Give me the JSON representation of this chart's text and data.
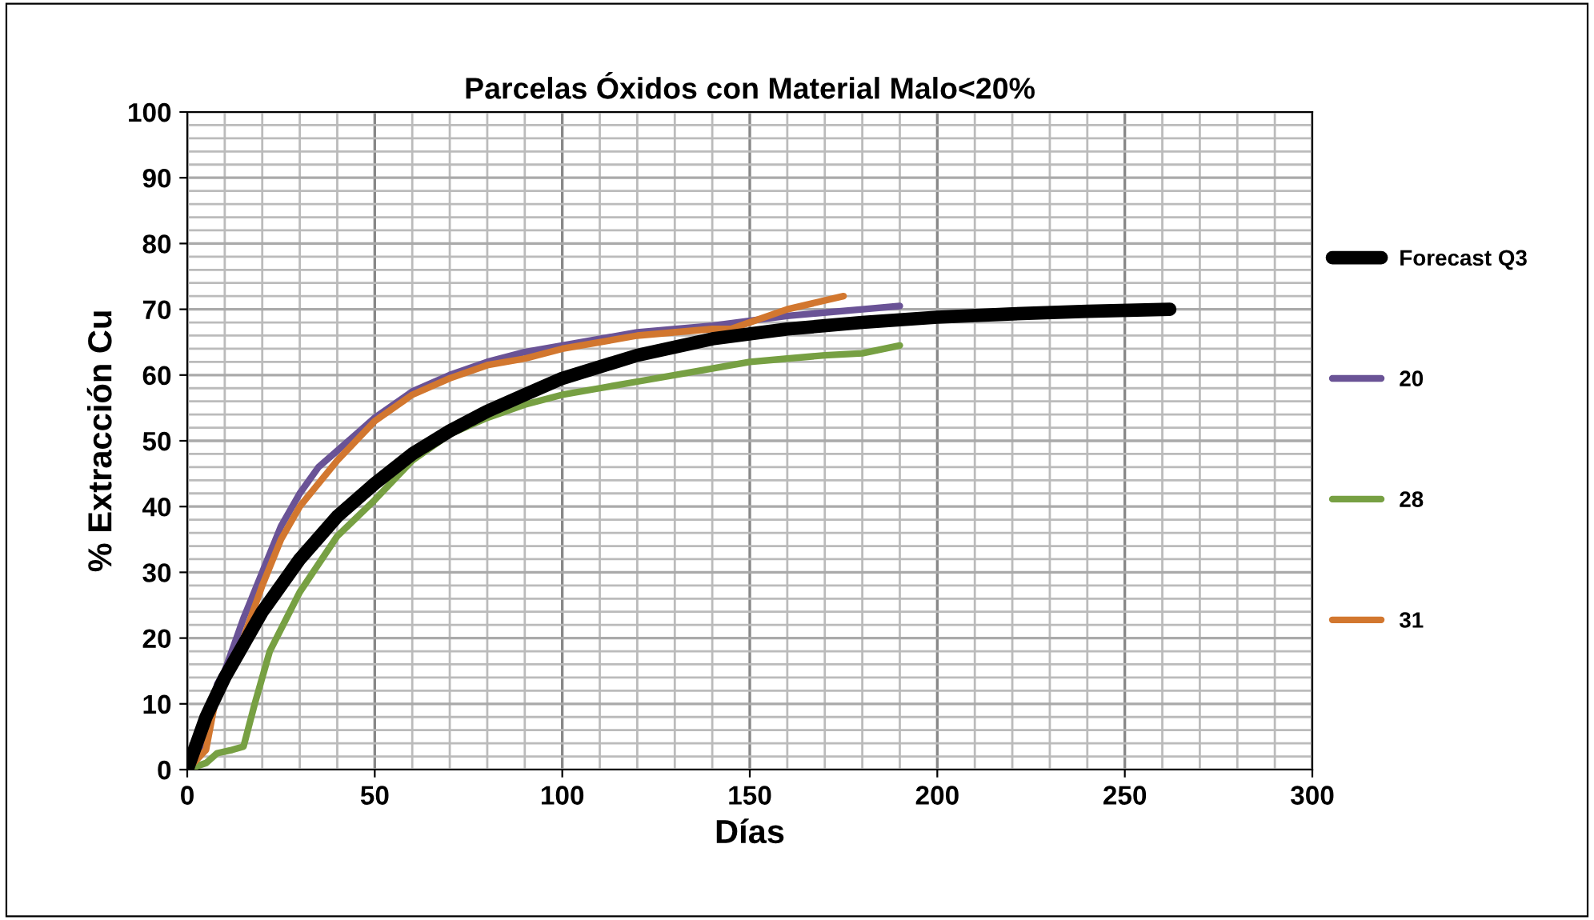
{
  "chart_data": {
    "type": "line",
    "title": "Parcelas Óxidos con Material Malo<20%",
    "xlabel": "Días",
    "ylabel": "% Extracción Cu",
    "xlim": [
      0,
      300
    ],
    "xticks": [
      0,
      50,
      100,
      150,
      200,
      250,
      300
    ],
    "ylim": [
      0,
      100
    ],
    "yticks": [
      0,
      10,
      20,
      30,
      40,
      50,
      60,
      70,
      80,
      90,
      100
    ],
    "grid": true,
    "legend": "right",
    "marker": "none",
    "line_style": "solid",
    "series": [
      {
        "name": "Forecast Q3",
        "color": "#000000",
        "x": [
          0,
          5,
          10,
          20,
          30,
          40,
          50,
          60,
          70,
          80,
          90,
          100,
          120,
          140,
          160,
          180,
          200,
          220,
          240,
          262
        ],
        "values": [
          0,
          8,
          14,
          24,
          32,
          38.5,
          43.5,
          48,
          51.5,
          54.5,
          57,
          59.5,
          63,
          65.5,
          67,
          68,
          68.8,
          69.3,
          69.7,
          70
        ]
      },
      {
        "name": "20",
        "color": "#6a5396",
        "x": [
          0,
          5,
          8,
          10,
          15,
          20,
          25,
          30,
          35,
          40,
          45,
          50,
          60,
          70,
          80,
          90,
          100,
          120,
          140,
          160,
          180,
          190
        ],
        "values": [
          0,
          5,
          13,
          15,
          23,
          30,
          37,
          42,
          46,
          48.5,
          51,
          53.5,
          57.5,
          60,
          62,
          63.5,
          64.5,
          66.5,
          67.5,
          69,
          70,
          70.5
        ]
      },
      {
        "name": "28",
        "color": "#77a043",
        "x": [
          0,
          5,
          8,
          12,
          15,
          18,
          22,
          30,
          40,
          50,
          60,
          70,
          80,
          90,
          100,
          110,
          120,
          140,
          150,
          160,
          170,
          180,
          190
        ],
        "values": [
          0,
          1,
          2.5,
          3,
          3.5,
          10,
          18,
          27,
          35.5,
          41,
          47,
          51,
          53.5,
          55.5,
          57,
          58,
          59,
          61,
          62,
          62.5,
          63,
          63.3,
          64.5
        ]
      },
      {
        "name": "31",
        "color": "#d2772f",
        "x": [
          0,
          5,
          8,
          12,
          15,
          20,
          25,
          30,
          40,
          50,
          60,
          70,
          80,
          90,
          100,
          120,
          140,
          145,
          150,
          160,
          175
        ],
        "values": [
          0,
          3,
          12,
          16,
          20,
          28,
          35,
          40,
          47,
          53,
          57,
          59.5,
          61.5,
          62.5,
          64,
          66,
          67,
          67,
          68,
          70,
          72
        ]
      }
    ]
  }
}
